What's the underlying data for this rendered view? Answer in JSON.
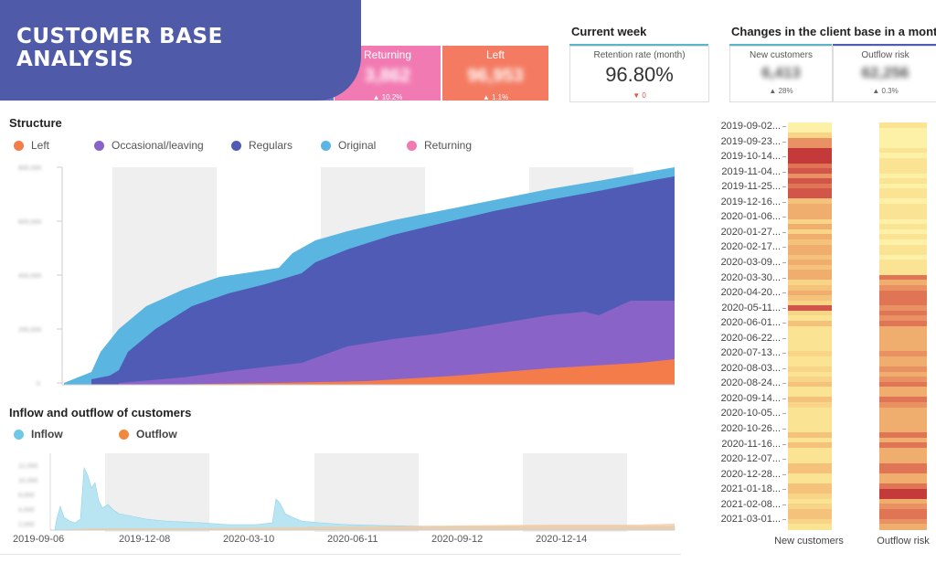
{
  "title": "CUSTOMER BASE\nANALYSIS",
  "kpis": {
    "returning": {
      "label": "Returning",
      "change": "▲ 10.2%"
    },
    "left": {
      "label": "Left",
      "change": "▲ 1.1%"
    }
  },
  "current_week": {
    "title": "Current week",
    "retention_label": "Retention rate (month)",
    "retention_value": "96.80%",
    "retention_change": "▼ 0"
  },
  "changes": {
    "title": "Changes in the client base in a month",
    "new_customers_label": "New customers",
    "new_customers_change": "▲ 28%",
    "outflow_risk_label": "Outflow risk",
    "outflow_risk_change": "▲ 0.3%"
  },
  "structure": {
    "title": "Structure",
    "legend": [
      {
        "label": "Left",
        "color": "#f47b4a"
      },
      {
        "label": "Occasional/leaving",
        "color": "#8a63c8"
      },
      {
        "label": "Regulars",
        "color": "#4f5bb5"
      },
      {
        "label": "Original",
        "color": "#5ab6e0"
      },
      {
        "label": "Returning",
        "color": "#f27ab2"
      }
    ]
  },
  "flow": {
    "title": "Inflow and outflow of customers",
    "legend": [
      {
        "label": "Inflow",
        "color": "#6fc8e6"
      },
      {
        "label": "Outflow",
        "color": "#f0893e"
      }
    ],
    "x_labels": [
      "2019-09-06",
      "2019-12-08",
      "2020-03-10",
      "2020-06-11",
      "2020-09-12",
      "2020-12-14"
    ]
  },
  "heatmap": {
    "row_labels": [
      "2019-09-02...",
      "2019-09-23...",
      "2019-10-14...",
      "2019-11-04...",
      "2019-11-25...",
      "2019-12-16...",
      "2020-01-06...",
      "2020-01-27...",
      "2020-02-17...",
      "2020-03-09...",
      "2020-03-30...",
      "2020-04-20...",
      "2020-05-11...",
      "2020-06-01...",
      "2020-06-22...",
      "2020-07-13...",
      "2020-08-03...",
      "2020-08-24...",
      "2020-09-14...",
      "2020-10-05...",
      "2020-10-26...",
      "2020-11-16...",
      "2020-12-07...",
      "2020-12-28...",
      "2021-01-18...",
      "2021-02-08...",
      "2021-03-01..."
    ],
    "col1_label": "New customers",
    "col2_label": "Outflow risk"
  }
}
